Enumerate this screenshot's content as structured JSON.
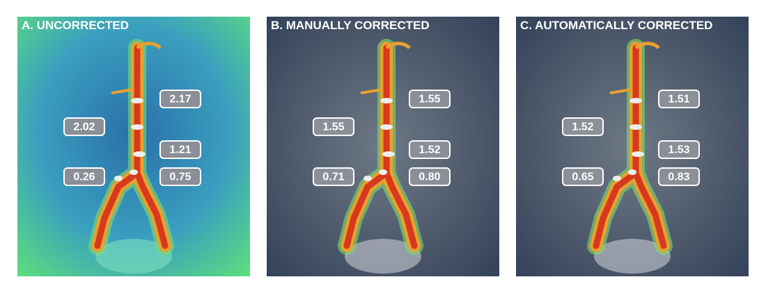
{
  "panels": [
    {
      "title": "A. UNCORRECTED",
      "labels": [
        "2.17",
        "2.02",
        "1.21",
        "0.26",
        "0.75"
      ]
    },
    {
      "title": "B. MANUALLY CORRECTED",
      "labels": [
        "1.55",
        "1.55",
        "1.52",
        "0.71",
        "0.80"
      ]
    },
    {
      "title": "C. AUTOMATICALLY CORRECTED",
      "labels": [
        "1.51",
        "1.52",
        "1.53",
        "0.65",
        "0.83"
      ]
    }
  ]
}
